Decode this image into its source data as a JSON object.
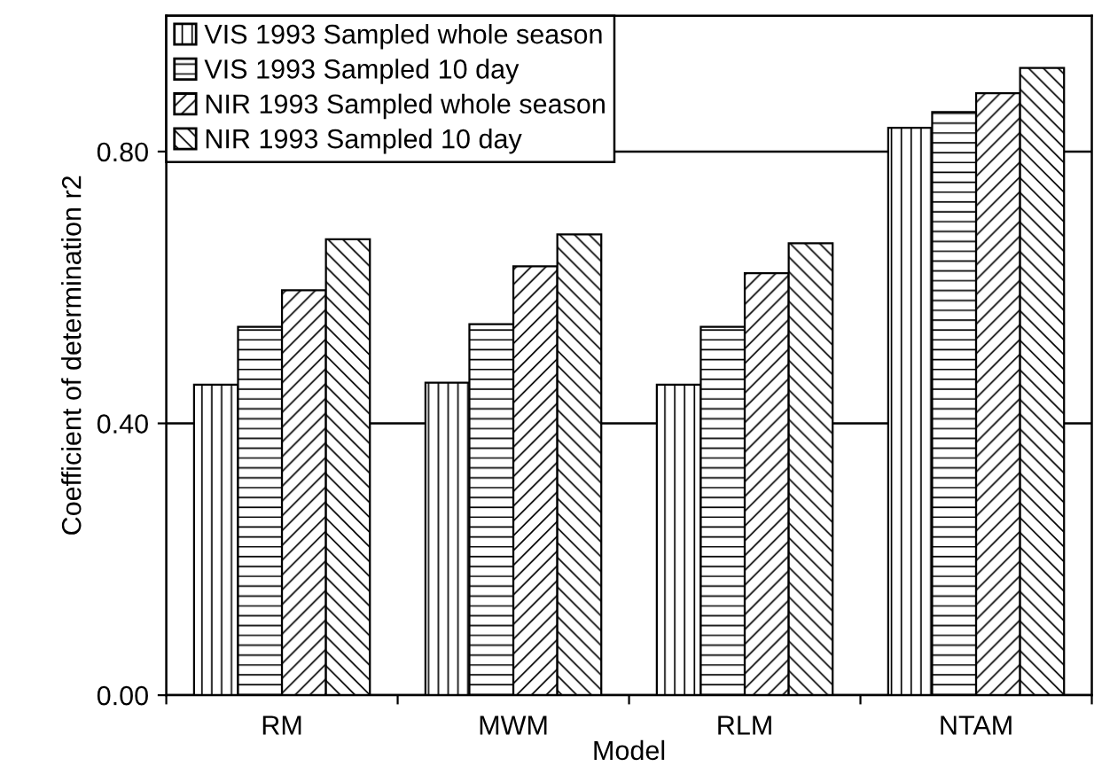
{
  "chart_data": {
    "type": "bar",
    "xlabel": "Model",
    "ylabel": "Coefficient of determination r2",
    "categories": [
      "RM",
      "MWM",
      "RLM",
      "NTAM"
    ],
    "series": [
      {
        "name": "VIS 1993 Sampled whole season",
        "color": "#000000",
        "values": [
          0.457,
          0.46,
          0.457,
          0.835
        ]
      },
      {
        "name": "VIS 1993 Sampled 10 day",
        "color": "#000000",
        "values": [
          0.542,
          0.546,
          0.542,
          0.858
        ]
      },
      {
        "name": "NIR 1993 Sampled whole season",
        "color": "#000000",
        "values": [
          0.596,
          0.631,
          0.621,
          0.886
        ]
      },
      {
        "name": "NIR 1993 Sampled 10 day",
        "color": "#000000",
        "values": [
          0.671,
          0.678,
          0.665,
          0.923
        ]
      }
    ],
    "ylim": [
      0,
      1.0
    ],
    "yticks": [
      {
        "value": 0,
        "label": "0.00"
      },
      {
        "value": 0.4,
        "label": "0.40"
      },
      {
        "value": 0.8,
        "label": "0.80"
      }
    ],
    "grid": "y",
    "legend": "top left"
  }
}
